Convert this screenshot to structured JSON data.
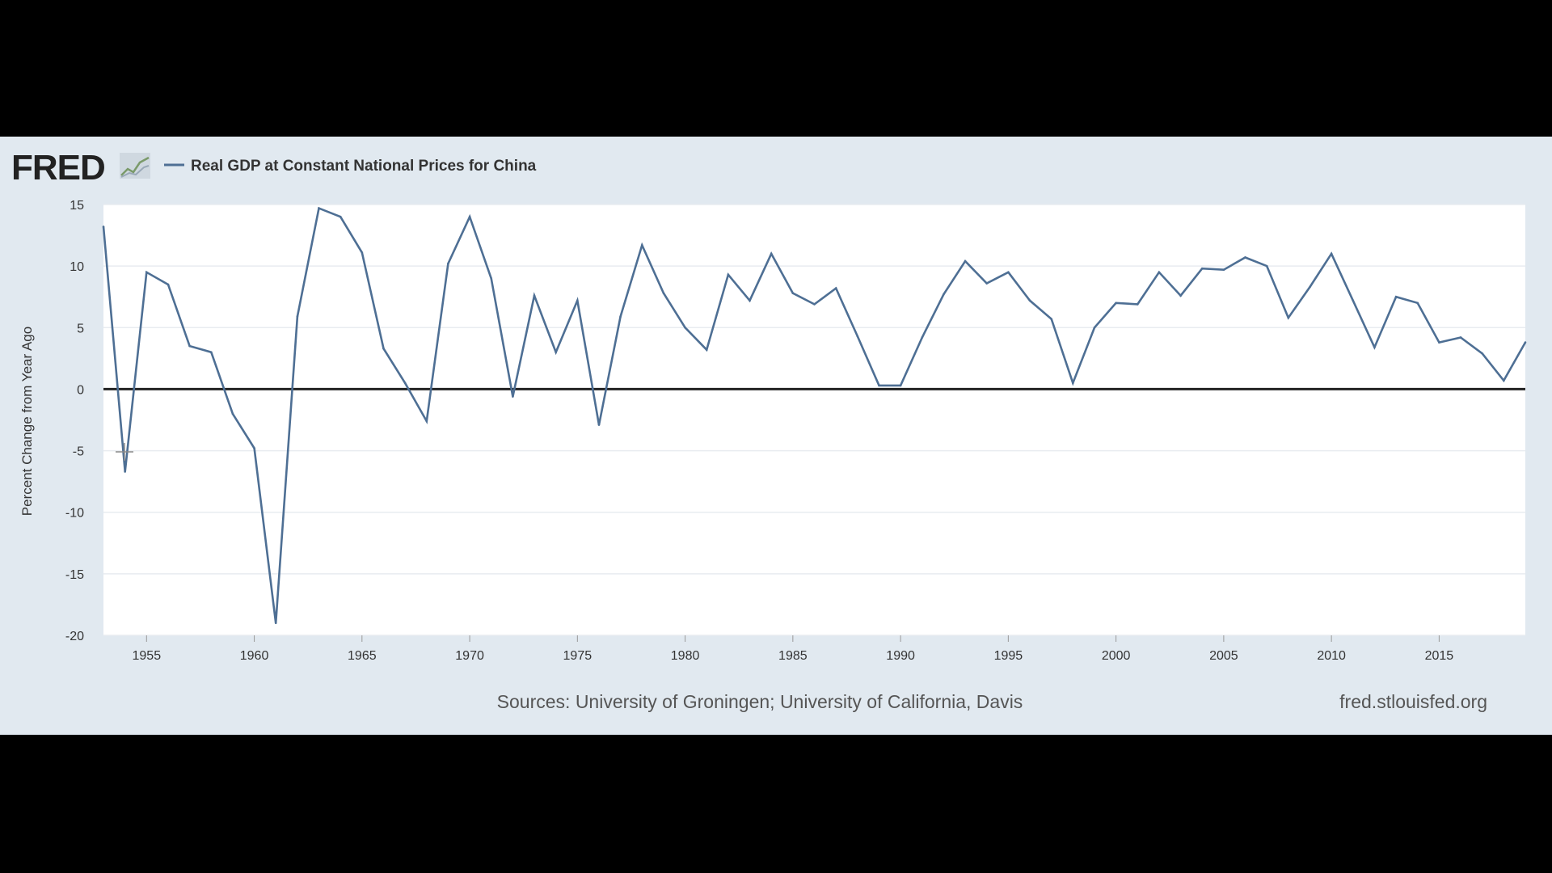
{
  "logo": {
    "text": "FRED"
  },
  "legend": {
    "series_name": "Real GDP at Constant National Prices for China"
  },
  "footer": {
    "sources": "Sources: University of Groningen; University of California, Davis",
    "site": "fred.stlouisfed.org"
  },
  "colors": {
    "series": "#4e6f94",
    "zero_line": "#222222",
    "panel_bg": "#e1e9f0",
    "plot_bg": "#ffffff"
  },
  "chart_data": {
    "type": "line",
    "title": "",
    "ylabel": "Percent Change from Year Ago",
    "xlabel": "",
    "xlim": [
      1953,
      2019
    ],
    "ylim": [
      -20,
      15
    ],
    "x_ticks": [
      1955,
      1960,
      1965,
      1970,
      1975,
      1980,
      1985,
      1990,
      1995,
      2000,
      2005,
      2010,
      2015
    ],
    "y_ticks": [
      15,
      10,
      5,
      0,
      -5,
      -10,
      -15,
      -20
    ],
    "grid": true,
    "legend_position": "top-left",
    "series": [
      {
        "name": "Real GDP at Constant National Prices for China",
        "x": [
          1953,
          1954,
          1955,
          1956,
          1957,
          1958,
          1959,
          1960,
          1961,
          1962,
          1963,
          1964,
          1965,
          1966,
          1967,
          1968,
          1969,
          1970,
          1971,
          1972,
          1973,
          1974,
          1975,
          1976,
          1977,
          1978,
          1979,
          1980,
          1981,
          1982,
          1983,
          1984,
          1985,
          1986,
          1987,
          1988,
          1989,
          1990,
          1991,
          1992,
          1993,
          1994,
          1995,
          1996,
          1997,
          1998,
          1999,
          2000,
          2001,
          2002,
          2003,
          2004,
          2005,
          2006,
          2007,
          2008,
          2009,
          2010,
          2011,
          2012,
          2013,
          2014,
          2015,
          2016,
          2017,
          2018,
          2019
        ],
        "values": [
          13.2,
          -6.7,
          9.5,
          8.5,
          3.5,
          3.0,
          -2.0,
          -4.8,
          -19.0,
          5.9,
          14.7,
          14.0,
          11.1,
          3.3,
          0.5,
          -2.6,
          10.2,
          14.0,
          9.0,
          -0.6,
          7.6,
          3.0,
          7.2,
          -2.9,
          5.9,
          11.7,
          7.8,
          5.0,
          3.2,
          9.3,
          7.2,
          11.0,
          7.8,
          6.9,
          8.2,
          4.3,
          0.3,
          0.3,
          4.2,
          7.7,
          10.4,
          8.6,
          9.5,
          7.2,
          5.7,
          0.5,
          5.0,
          7.0,
          6.9,
          9.5,
          7.6,
          9.8,
          9.7,
          10.7,
          10.0,
          5.8,
          8.3,
          11.0,
          7.2,
          3.4,
          7.5,
          7.0,
          3.8,
          4.2,
          2.9,
          0.7,
          3.8
        ]
      }
    ]
  }
}
